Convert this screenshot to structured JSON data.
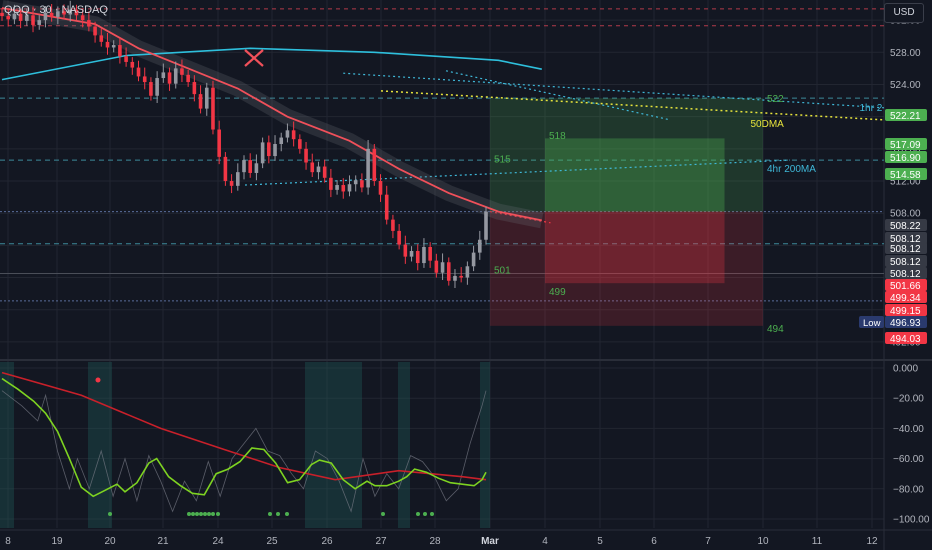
{
  "symbol_label": "QQQ · 30 · NASDAQ",
  "currency_button": "USD",
  "chart_data": {
    "type": "candlestick",
    "x_ticks": [
      "8",
      "19",
      "20",
      "21",
      "24",
      "25",
      "26",
      "27",
      "28",
      "Mar",
      "4",
      "5",
      "6",
      "7",
      "10",
      "11",
      "12"
    ],
    "price_axis": {
      "ylim": [
        490,
        534.5
      ],
      "ticks": [
        "532.00",
        "528.00",
        "524.00",
        "520.00",
        "516.00",
        "512.00",
        "508.00",
        "504.00",
        "500.00",
        "496.00",
        "492.00"
      ]
    },
    "price_tags": [
      {
        "value": "522.21",
        "color": "#4caf50"
      },
      {
        "value": "517.09",
        "color": "#4caf50"
      },
      {
        "value": "516.90",
        "color": "#4caf50"
      },
      {
        "value": "514.58",
        "color": "#4caf50"
      },
      {
        "value": "508.22",
        "color": "#363a45"
      },
      {
        "value": "508.12",
        "color": "#363a45"
      },
      {
        "value": "508.12",
        "color": "#363a45"
      },
      {
        "value": "508.12",
        "color": "#363a45"
      },
      {
        "value": "508.12",
        "color": "#363a45"
      },
      {
        "value": "501.66",
        "color": "#f23645"
      },
      {
        "value": "499.34",
        "color": "#f23645"
      },
      {
        "value": "499.15",
        "color": "#f23645"
      },
      {
        "value": "496.93",
        "color": "#2a3a6e"
      },
      {
        "value": "494.03",
        "color": "#f23645"
      }
    ],
    "low_badge": "Low",
    "annotations": [
      {
        "text": "522",
        "price": 522.3,
        "idx": 14.0
      },
      {
        "text": "518",
        "price": 517.7,
        "idx": 10.0
      },
      {
        "text": "515",
        "price": 514.8,
        "idx": 9.0
      },
      {
        "text": "501",
        "price": 501.0,
        "idx": 9.0
      },
      {
        "text": "499",
        "price": 498.3,
        "idx": 10.0
      },
      {
        "text": "494",
        "price": 493.7,
        "idx": 14.0
      },
      {
        "text": "1hr 2",
        "price": 521.2,
        "idx": 15.7
      },
      {
        "text": "50DMA",
        "price": 519.2,
        "idx": 13.7
      },
      {
        "text": "4hr 200MA",
        "price": 513.6,
        "idx": 14.0
      }
    ],
    "candles_close": [
      532.5,
      532.1,
      532.8,
      531.9,
      532.6,
      531.4,
      532.0,
      532.9,
      532.4,
      533.1,
      532.7,
      533.3,
      532.6,
      532.0,
      531.2,
      530.1,
      529.3,
      528.6,
      528.9,
      527.5,
      526.8,
      526.1,
      525.0,
      524.3,
      522.6,
      524.8,
      525.5,
      524.1,
      526.0,
      525.2,
      524.3,
      522.8,
      521.0,
      523.6,
      518.4,
      515.0,
      512.0,
      511.4,
      513.1,
      514.6,
      513.0,
      514.2,
      516.8,
      515.1,
      516.6,
      517.4,
      518.3,
      517.2,
      516.0,
      514.3,
      513.1,
      513.8,
      512.4,
      510.9,
      511.5,
      510.7,
      511.6,
      512.1,
      511.2,
      516.0,
      512.0,
      510.3,
      507.2,
      505.8,
      504.1,
      502.6,
      503.3,
      501.8,
      503.8,
      502.1,
      500.6,
      501.9,
      499.6,
      500.2,
      500.0,
      501.4,
      503.1,
      504.7,
      508.2
    ],
    "ma_cyan": [
      [
        0,
        524.6
      ],
      [
        20,
        527.6
      ],
      [
        40,
        528.5
      ],
      [
        60,
        528.0
      ],
      [
        80,
        527.0
      ],
      [
        87,
        525.9
      ]
    ],
    "ma_red": [
      [
        0,
        533.5
      ],
      [
        15,
        531.5
      ],
      [
        22,
        528.5
      ],
      [
        30,
        526.0
      ],
      [
        38,
        523.5
      ],
      [
        46,
        520.0
      ],
      [
        56,
        517.0
      ],
      [
        64,
        513.5
      ],
      [
        72,
        510.5
      ],
      [
        80,
        508.2
      ],
      [
        87,
        507.1
      ]
    ],
    "oscillator": {
      "ticks": [
        "0.000",
        "−20.00",
        "−40.00",
        "−60.00",
        "−80.00",
        "−100.00"
      ],
      "ylim": [
        -106,
        4
      ],
      "green": [
        [
          0,
          -7
        ],
        [
          8,
          -14
        ],
        [
          16,
          -22
        ],
        [
          22,
          -30
        ],
        [
          28,
          -42
        ],
        [
          34,
          -60
        ],
        [
          40,
          -79
        ],
        [
          46,
          -85
        ],
        [
          52,
          -81
        ],
        [
          58,
          -77
        ],
        [
          62,
          -82
        ],
        [
          68,
          -76
        ],
        [
          74,
          -63
        ],
        [
          78,
          -60
        ],
        [
          84,
          -72
        ],
        [
          90,
          -78
        ],
        [
          96,
          -83
        ],
        [
          102,
          -84
        ],
        [
          108,
          -70
        ],
        [
          114,
          -67
        ],
        [
          120,
          -62
        ],
        [
          126,
          -53
        ],
        [
          132,
          -54
        ],
        [
          138,
          -63
        ],
        [
          144,
          -76
        ],
        [
          150,
          -74
        ],
        [
          156,
          -64
        ],
        [
          160,
          -61
        ],
        [
          166,
          -63
        ],
        [
          172,
          -74
        ],
        [
          178,
          -80
        ],
        [
          184,
          -75
        ],
        [
          188,
          -78
        ],
        [
          194,
          -78
        ],
        [
          200,
          -75
        ],
        [
          204,
          -72
        ],
        [
          208,
          -67
        ],
        [
          214,
          -69
        ],
        [
          220,
          -73
        ],
        [
          226,
          -76
        ],
        [
          232,
          -77
        ],
        [
          238,
          -78
        ],
        [
          242,
          -74
        ],
        [
          244,
          -69
        ]
      ],
      "red": [
        [
          0,
          -3
        ],
        [
          40,
          -18
        ],
        [
          80,
          -40
        ],
        [
          112,
          -54
        ],
        [
          140,
          -66
        ],
        [
          168,
          -74
        ],
        [
          200,
          -68
        ],
        [
          232,
          -72
        ],
        [
          244,
          -74
        ]
      ],
      "gray": [
        [
          0,
          -15
        ],
        [
          10,
          -25
        ],
        [
          18,
          -35
        ],
        [
          22,
          -18
        ],
        [
          28,
          -55
        ],
        [
          34,
          -80
        ],
        [
          38,
          -60
        ],
        [
          44,
          -80
        ],
        [
          50,
          -55
        ],
        [
          56,
          -85
        ],
        [
          62,
          -60
        ],
        [
          68,
          -88
        ],
        [
          74,
          -58
        ],
        [
          80,
          -75
        ],
        [
          86,
          -95
        ],
        [
          92,
          -75
        ],
        [
          98,
          -88
        ],
        [
          104,
          -62
        ],
        [
          110,
          -85
        ],
        [
          116,
          -60
        ],
        [
          122,
          -50
        ],
        [
          128,
          -40
        ],
        [
          134,
          -55
        ],
        [
          140,
          -58
        ],
        [
          146,
          -70
        ],
        [
          152,
          -80
        ],
        [
          158,
          -55
        ],
        [
          164,
          -60
        ],
        [
          170,
          -75
        ],
        [
          176,
          -95
        ],
        [
          182,
          -60
        ],
        [
          188,
          -85
        ],
        [
          194,
          -70
        ],
        [
          200,
          -80
        ],
        [
          206,
          -58
        ],
        [
          212,
          -62
        ],
        [
          218,
          -72
        ],
        [
          224,
          -88
        ],
        [
          230,
          -80
        ],
        [
          236,
          -50
        ],
        [
          242,
          -25
        ],
        [
          244,
          -15
        ]
      ]
    }
  }
}
